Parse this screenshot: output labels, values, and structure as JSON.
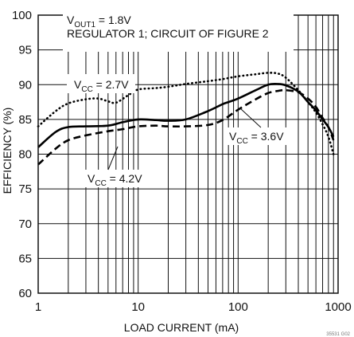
{
  "chart_data": {
    "type": "line",
    "xlabel": "LOAD CURRENT (mA)",
    "ylabel": "EFFICIENCY (%)",
    "xscale": "log",
    "xlim": [
      1,
      1000
    ],
    "ylim": [
      60,
      100
    ],
    "xticks": [
      1,
      10,
      100,
      1000
    ],
    "yticks": [
      60,
      65,
      70,
      75,
      80,
      85,
      90,
      95,
      100
    ],
    "grid": "on (log minor vertical gridlines, horizontal gridlines every 5%)",
    "legend": "none (curves labeled inline)",
    "header": {
      "line1_pre": "V",
      "line1_sub": "OUT1",
      "line1_post": " = 1.8V",
      "line2": "REGULATOR 1; CIRCUIT OF FIGURE 2"
    },
    "series": [
      {
        "name": "VCC = 2.7V",
        "label_pre": "V",
        "label_sub": "CC",
        "label_post": " = 2.7V",
        "style": "dotted",
        "x": [
          1,
          1.5,
          2,
          3,
          4,
          5,
          6,
          8,
          10,
          15,
          20,
          30,
          50,
          70,
          100,
          150,
          200,
          250,
          300,
          400,
          500,
          600,
          700,
          800,
          900
        ],
        "y": [
          84,
          86.2,
          87.3,
          87.9,
          88.0,
          87.6,
          87.4,
          88.5,
          89.3,
          89.5,
          89.7,
          90.1,
          90.5,
          90.8,
          91.2,
          91.5,
          91.7,
          91.6,
          91.0,
          89.2,
          87.5,
          86.0,
          84.3,
          82.5,
          80.0
        ]
      },
      {
        "name": "VCC = 3.6V",
        "label_pre": "V",
        "label_sub": "CC",
        "label_post": " = 3.6V",
        "style": "solid",
        "x": [
          1,
          1.5,
          2,
          3,
          5,
          7,
          10,
          15,
          20,
          30,
          50,
          70,
          80,
          100,
          150,
          200,
          250,
          300,
          400,
          500,
          600,
          700,
          800,
          900
        ],
        "y": [
          81.0,
          83.2,
          83.9,
          84.0,
          84.1,
          84.6,
          85.0,
          84.9,
          84.8,
          85.0,
          86.2,
          87.2,
          87.5,
          88.0,
          89.2,
          90.0,
          90.1,
          89.9,
          89.0,
          87.5,
          86.3,
          85.0,
          83.9,
          82.5
        ]
      },
      {
        "name": "VCC = 4.2V",
        "label_pre": "V",
        "label_sub": "CC",
        "label_post": " = 4.2V",
        "style": "dashed",
        "x": [
          1,
          1.5,
          2,
          3,
          5,
          7,
          10,
          15,
          20,
          30,
          50,
          70,
          100,
          150,
          200,
          250,
          300,
          400,
          500,
          600,
          700,
          800,
          900
        ],
        "y": [
          78.5,
          80.8,
          82.0,
          82.7,
          83.3,
          83.6,
          84.0,
          84.1,
          84.0,
          84.0,
          84.2,
          84.9,
          86.4,
          87.9,
          88.8,
          89.1,
          89.2,
          88.9,
          88.0,
          86.8,
          85.2,
          83.9,
          82.0
        ]
      }
    ],
    "figure_ref": "35531 G02"
  }
}
